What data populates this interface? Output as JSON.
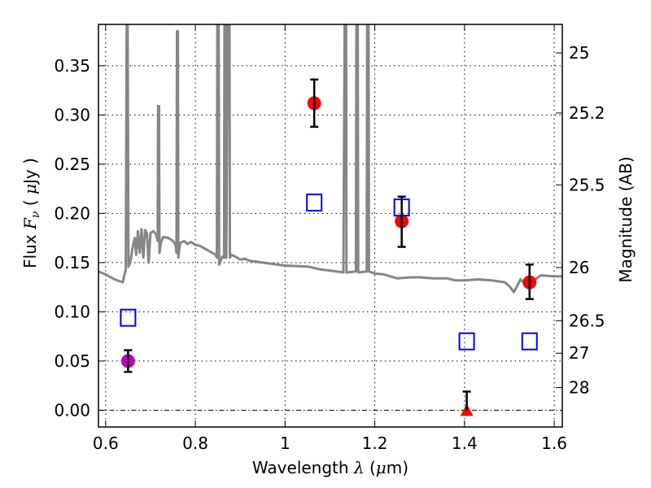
{
  "chart_data": {
    "type": "scatter",
    "title": "",
    "xlabel": "Wavelength  λ (μm)",
    "xlabel_parts": {
      "pre": "Wavelength  ",
      "symbol": "λ",
      "post": " (",
      "mu": "μ",
      "unit": "m)"
    },
    "ylabel": "Flux  Fν  ( μJy )",
    "ylabel_parts": {
      "pre": "Flux  ",
      "F": "F",
      "nu": "ν",
      "open": "  ( ",
      "mu": "μ",
      "unit": "Jy )"
    },
    "y2label": "Magnitude (AB)",
    "xlim": [
      0.584,
      1.618
    ],
    "ylim": [
      -0.017,
      0.392
    ],
    "grid": true,
    "legend": "none",
    "x_ticks": [
      0.6,
      0.8,
      1.0,
      1.2,
      1.4,
      1.6
    ],
    "x_tick_labels": [
      "0.6",
      "0.8",
      "1",
      "1.2",
      "1.4",
      "1.6"
    ],
    "y_ticks": [
      0.0,
      0.05,
      0.1,
      0.15,
      0.2,
      0.25,
      0.3,
      0.35
    ],
    "y_tick_labels": [
      "0.00",
      "0.05",
      "0.10",
      "0.15",
      "0.20",
      "0.25",
      "0.30",
      "0.35"
    ],
    "y2_ticks": [
      {
        "label": "25",
        "flux": 0.363
      },
      {
        "label": "25.2",
        "flux": 0.302
      },
      {
        "label": "25.5",
        "flux": 0.229
      },
      {
        "label": "26",
        "flux": 0.145
      },
      {
        "label": "26.5",
        "flux": 0.091
      },
      {
        "label": "27",
        "flux": 0.058
      },
      {
        "label": "28",
        "flux": 0.023
      }
    ],
    "series": [
      {
        "name": "photometry",
        "marker": "circle",
        "color": "#ff0000",
        "points": [
          {
            "x": 1.065,
            "y": 0.312,
            "err_lo": 0.288,
            "err_hi": 0.336
          },
          {
            "x": 1.26,
            "y": 0.192,
            "err_lo": 0.166,
            "err_hi": 0.217
          },
          {
            "x": 1.545,
            "y": 0.13,
            "err_lo": 0.113,
            "err_hi": 0.148
          }
        ]
      },
      {
        "name": "photometry-optical",
        "marker": "circle",
        "color": "#bb00bb",
        "points": [
          {
            "x": 0.65,
            "y": 0.05,
            "err_lo": 0.039,
            "err_hi": 0.061
          }
        ]
      },
      {
        "name": "upper-limit",
        "marker": "triangle",
        "color": "#ff0000",
        "points": [
          {
            "x": 1.405,
            "y": 0.0,
            "err_lo": 0.0,
            "err_hi": 0.019
          }
        ]
      },
      {
        "name": "model-photometry",
        "marker": "open-square",
        "color": "#0000ff",
        "points": [
          {
            "x": 0.65,
            "y": 0.094
          },
          {
            "x": 1.065,
            "y": 0.211
          },
          {
            "x": 1.26,
            "y": 0.206
          },
          {
            "x": 1.405,
            "y": 0.07
          },
          {
            "x": 1.545,
            "y": 0.07
          }
        ]
      },
      {
        "name": "model-spectrum",
        "marker": "line",
        "color": "#808080",
        "points": [
          [
            0.584,
            0.141
          ],
          [
            0.6,
            0.138
          ],
          [
            0.62,
            0.133
          ],
          [
            0.638,
            0.13
          ],
          [
            0.645,
            0.143
          ],
          [
            0.647,
            0.4
          ],
          [
            0.649,
            0.4
          ],
          [
            0.651,
            0.146
          ],
          [
            0.655,
            0.15
          ],
          [
            0.66,
            0.165
          ],
          [
            0.665,
            0.175
          ],
          [
            0.668,
            0.158
          ],
          [
            0.672,
            0.182
          ],
          [
            0.676,
            0.16
          ],
          [
            0.68,
            0.184
          ],
          [
            0.684,
            0.155
          ],
          [
            0.688,
            0.183
          ],
          [
            0.692,
            0.18
          ],
          [
            0.696,
            0.15
          ],
          [
            0.7,
            0.18
          ],
          [
            0.706,
            0.182
          ],
          [
            0.712,
            0.179
          ],
          [
            0.716,
            0.172
          ],
          [
            0.717,
            0.309
          ],
          [
            0.719,
            0.309
          ],
          [
            0.72,
            0.16
          ],
          [
            0.723,
            0.17
          ],
          [
            0.728,
            0.176
          ],
          [
            0.74,
            0.175
          ],
          [
            0.75,
            0.172
          ],
          [
            0.756,
            0.168
          ],
          [
            0.758,
            0.16
          ],
          [
            0.759,
            0.385
          ],
          [
            0.761,
            0.385
          ],
          [
            0.762,
            0.155
          ],
          [
            0.766,
            0.17
          ],
          [
            0.775,
            0.172
          ],
          [
            0.782,
            0.169
          ],
          [
            0.79,
            0.171
          ],
          [
            0.8,
            0.168
          ],
          [
            0.81,
            0.167
          ],
          [
            0.83,
            0.162
          ],
          [
            0.845,
            0.158
          ],
          [
            0.848,
            0.155
          ],
          [
            0.849,
            0.4
          ],
          [
            0.852,
            0.4
          ],
          [
            0.853,
            0.148
          ],
          [
            0.86,
            0.156
          ],
          [
            0.864,
            0.155
          ],
          [
            0.865,
            0.4
          ],
          [
            0.868,
            0.4
          ],
          [
            0.869,
            0.155
          ],
          [
            0.872,
            0.4
          ],
          [
            0.876,
            0.4
          ],
          [
            0.877,
            0.155
          ],
          [
            0.88,
            0.158
          ],
          [
            0.89,
            0.156
          ],
          [
            0.9,
            0.153
          ],
          [
            0.91,
            0.154
          ],
          [
            0.92,
            0.152
          ],
          [
            0.95,
            0.15
          ],
          [
            1.0,
            0.147
          ],
          [
            1.05,
            0.146
          ],
          [
            1.08,
            0.143
          ],
          [
            1.1,
            0.142
          ],
          [
            1.13,
            0.14
          ],
          [
            1.133,
            0.4
          ],
          [
            1.136,
            0.4
          ],
          [
            1.137,
            0.14
          ],
          [
            1.158,
            0.141
          ],
          [
            1.159,
            0.4
          ],
          [
            1.162,
            0.4
          ],
          [
            1.163,
            0.14
          ],
          [
            1.182,
            0.141
          ],
          [
            1.183,
            0.4
          ],
          [
            1.186,
            0.4
          ],
          [
            1.187,
            0.141
          ],
          [
            1.2,
            0.139
          ],
          [
            1.22,
            0.138
          ],
          [
            1.25,
            0.134
          ],
          [
            1.28,
            0.135
          ],
          [
            1.3,
            0.135
          ],
          [
            1.33,
            0.134
          ],
          [
            1.36,
            0.134
          ],
          [
            1.38,
            0.132
          ],
          [
            1.4,
            0.132
          ],
          [
            1.43,
            0.133
          ],
          [
            1.46,
            0.132
          ],
          [
            1.49,
            0.13
          ],
          [
            1.5,
            0.126
          ],
          [
            1.51,
            0.12
          ],
          [
            1.525,
            0.133
          ],
          [
            1.54,
            0.126
          ],
          [
            1.555,
            0.132
          ],
          [
            1.57,
            0.137
          ],
          [
            1.6,
            0.136
          ],
          [
            1.618,
            0.136
          ]
        ]
      }
    ]
  }
}
